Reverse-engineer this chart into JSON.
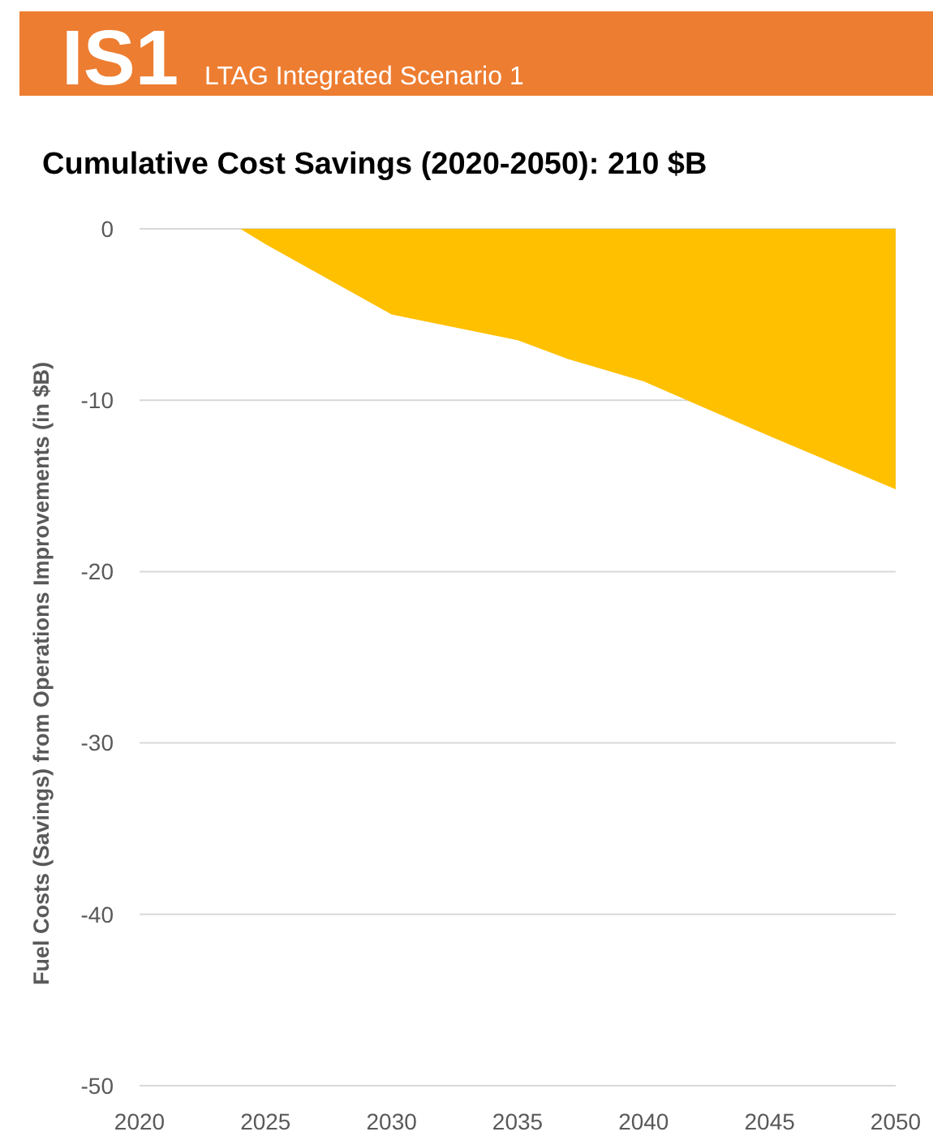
{
  "chart_data": {
    "type": "area",
    "title": "IS1",
    "subtitle": "LTAG Integrated Scenario 1",
    "annotations": [
      "Cumulative Cost Savings (2020-2050): 210 $B"
    ],
    "ylabel": "Fuel Costs (Savings) from Operations Improvements (in $B)",
    "x": [
      2020,
      2024,
      2025,
      2030,
      2035,
      2037,
      2040,
      2045,
      2050
    ],
    "values": [
      0,
      0,
      -0.9,
      -5,
      -6.5,
      -7.6,
      -8.9,
      -12.1,
      -15.2
    ],
    "color": "#ffc000",
    "xlim": [
      2020,
      2050
    ],
    "xticks": [
      2020,
      2025,
      2030,
      2035,
      2040,
      2045,
      2050
    ],
    "ylim": [
      -50,
      0
    ],
    "yticks": [
      -50,
      -40,
      -30,
      -20,
      -10,
      0
    ],
    "grid": "y"
  }
}
